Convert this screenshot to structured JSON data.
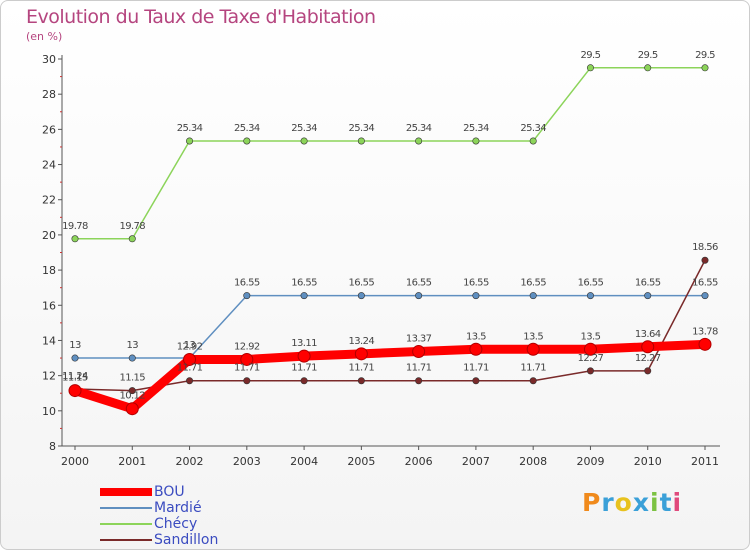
{
  "chart_data": {
    "type": "line",
    "title": "Evolution du Taux de Taxe d'Habitation",
    "ylabel": "(en %)",
    "ylim": [
      8,
      30
    ],
    "yticks": [
      8,
      10,
      12,
      14,
      16,
      18,
      20,
      22,
      24,
      26,
      28,
      30
    ],
    "categories": [
      "2000",
      "2001",
      "2002",
      "2003",
      "2004",
      "2005",
      "2006",
      "2007",
      "2008",
      "2009",
      "2010",
      "2011"
    ],
    "series": [
      {
        "name": "BOU",
        "color": "#ff0000",
        "values": [
          11.15,
          10.12,
          12.92,
          12.92,
          13.11,
          13.24,
          13.37,
          13.5,
          13.5,
          13.5,
          13.64,
          13.78
        ],
        "labels": [
          "11.15",
          "10.12",
          "12.92",
          "12.92",
          "13.11",
          "13.24",
          "13.37",
          "13.5",
          "13.5",
          "13.5",
          "13.64",
          "13.78"
        ]
      },
      {
        "name": "Mardié",
        "color": "#5f8fc0",
        "values": [
          13,
          13,
          13,
          16.55,
          16.55,
          16.55,
          16.55,
          16.55,
          16.55,
          16.55,
          16.55,
          16.55
        ],
        "labels": [
          "13",
          "13",
          "13",
          "16.55",
          "16.55",
          "16.55",
          "16.55",
          "16.55",
          "16.55",
          "16.55",
          "16.55",
          "16.55"
        ]
      },
      {
        "name": "Chécy",
        "color": "#8cd45a",
        "values": [
          19.78,
          19.78,
          25.34,
          25.34,
          25.34,
          25.34,
          25.34,
          25.34,
          25.34,
          29.5,
          29.5,
          29.5
        ],
        "labels": [
          "19.78",
          "19.78",
          "25.34",
          "25.34",
          "25.34",
          "25.34",
          "25.34",
          "25.34",
          "25.34",
          "29.5",
          "29.5",
          "29.5"
        ]
      },
      {
        "name": "Sandillon",
        "color": "#7a2a2a",
        "values": [
          11.24,
          11.15,
          11.71,
          11.71,
          11.71,
          11.71,
          11.71,
          11.71,
          11.71,
          12.27,
          12.27,
          18.56
        ],
        "labels": [
          "11.24",
          "11.15",
          "11.71",
          "11.71",
          "11.71",
          "11.71",
          "11.71",
          "11.71",
          "11.71",
          "12.27",
          "12.27",
          "18.56"
        ]
      }
    ]
  },
  "legend": {
    "items": [
      {
        "name": "BOU",
        "color": "#ff0000"
      },
      {
        "name": "Mardié",
        "color": "#5f8fc0"
      },
      {
        "name": "Chécy",
        "color": "#8cd45a"
      },
      {
        "name": "Sandillon",
        "color": "#7a2a2a"
      }
    ]
  },
  "logo": {
    "letters": [
      "P",
      "r",
      "o",
      "x",
      "i",
      "t",
      "i"
    ],
    "colors": [
      "#f08a1c",
      "#3aa0d8",
      "#e8c21e",
      "#3aa0d8",
      "#7cc242",
      "#3aa0d8",
      "#e04a7c"
    ]
  }
}
